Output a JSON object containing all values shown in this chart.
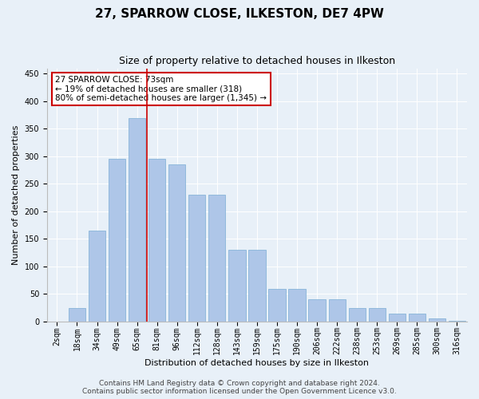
{
  "title": "27, SPARROW CLOSE, ILKESTON, DE7 4PW",
  "subtitle": "Size of property relative to detached houses in Ilkeston",
  "xlabel": "Distribution of detached houses by size in Ilkeston",
  "ylabel": "Number of detached properties",
  "categories": [
    "2sqm",
    "18sqm",
    "34sqm",
    "49sqm",
    "65sqm",
    "81sqm",
    "96sqm",
    "112sqm",
    "128sqm",
    "143sqm",
    "159sqm",
    "175sqm",
    "190sqm",
    "206sqm",
    "222sqm",
    "238sqm",
    "253sqm",
    "269sqm",
    "285sqm",
    "300sqm",
    "316sqm"
  ],
  "values": [
    0,
    25,
    165,
    295,
    370,
    295,
    285,
    230,
    230,
    130,
    130,
    60,
    60,
    40,
    40,
    25,
    25,
    15,
    15,
    5,
    2
  ],
  "bar_color": "#aec6e8",
  "bar_edgecolor": "#7aadd4",
  "vline_color": "#cc0000",
  "annotation_text": "27 SPARROW CLOSE: 73sqm\n← 19% of detached houses are smaller (318)\n80% of semi-detached houses are larger (1,345) →",
  "annotation_box_color": "#ffffff",
  "annotation_box_edgecolor": "#cc0000",
  "ylim": [
    0,
    460
  ],
  "yticks": [
    0,
    50,
    100,
    150,
    200,
    250,
    300,
    350,
    400,
    450
  ],
  "bg_color": "#e8f0f8",
  "plot_bg_color": "#e8f0f8",
  "footer1": "Contains HM Land Registry data © Crown copyright and database right 2024.",
  "footer2": "Contains public sector information licensed under the Open Government Licence v3.0.",
  "title_fontsize": 11,
  "subtitle_fontsize": 9,
  "label_fontsize": 8,
  "tick_fontsize": 7,
  "footer_fontsize": 6.5,
  "ann_fontsize": 7.5
}
